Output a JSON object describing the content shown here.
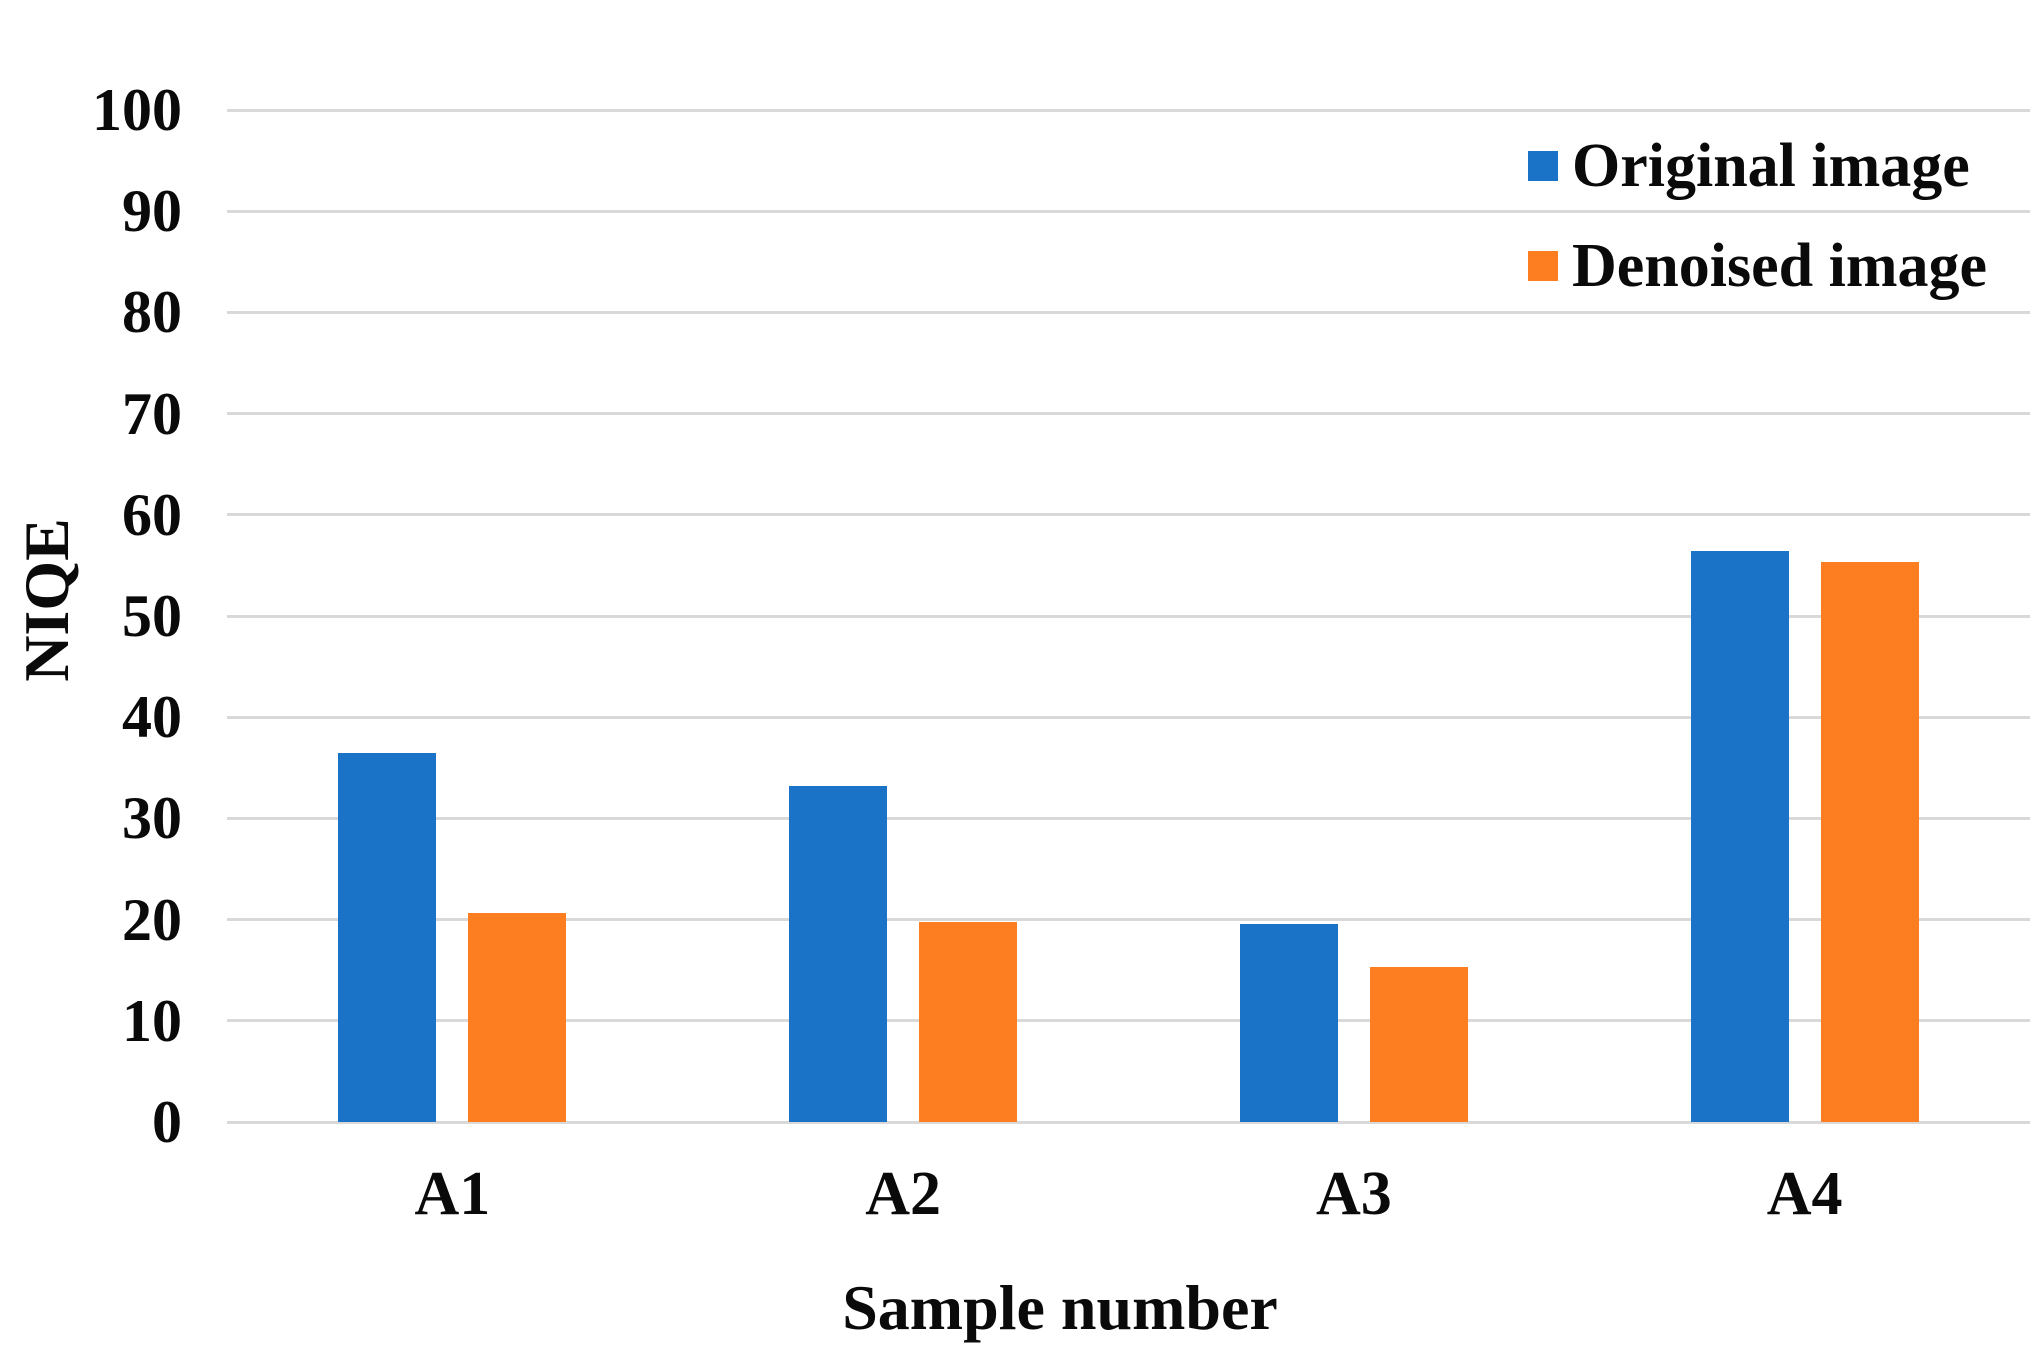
{
  "chart_data": {
    "type": "bar",
    "title": "",
    "categories": [
      "A1",
      "A2",
      "A3",
      "A4"
    ],
    "series": [
      {
        "name": "Original image",
        "color": "#1B73C8",
        "values": [
          36.5,
          33.2,
          19.6,
          56.4
        ]
      },
      {
        "name": "Denoised image",
        "color": "#FD7E21",
        "values": [
          20.7,
          19.8,
          15.3,
          55.3
        ]
      }
    ],
    "xlabel": "Sample number",
    "ylabel": "NIQE",
    "ylim": [
      0,
      100
    ],
    "yticks": [
      0,
      10,
      20,
      30,
      40,
      50,
      60,
      70,
      80,
      90,
      100
    ],
    "grid": true,
    "legend_position": "top-right",
    "colors": {
      "gridline": "#D9D9D9",
      "background": "#FFFFFF",
      "text": "#0A0A0A"
    }
  }
}
